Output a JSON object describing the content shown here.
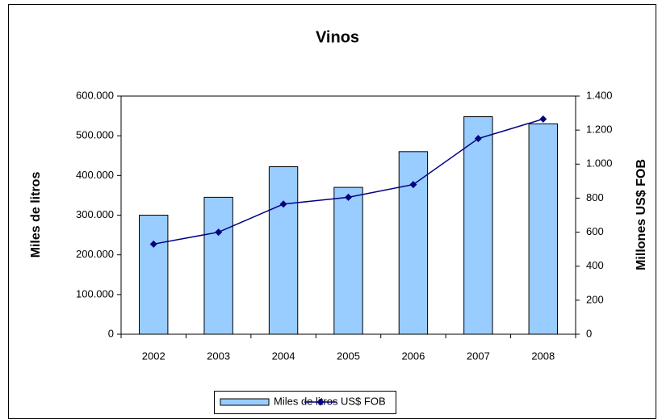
{
  "chart_data": {
    "type": "bar_line",
    "title": "Vinos",
    "categories": [
      "2002",
      "2003",
      "2004",
      "2005",
      "2006",
      "2007",
      "2008"
    ],
    "series": [
      {
        "name": "Miles de litros",
        "color": "#99ccff",
        "type": "bar",
        "values": [
          300000,
          345000,
          422000,
          370000,
          460000,
          548000,
          530000
        ]
      },
      {
        "name": "US$ FOB",
        "color": "#000080",
        "type": "line",
        "axis": "y2",
        "values": [
          530,
          600,
          765,
          805,
          880,
          1150,
          1265
        ]
      }
    ],
    "y_label": "Miles de litros",
    "y2_label": "Millones US$ FOB",
    "ylim": [
      0,
      600000
    ],
    "yticks": [
      0,
      {
        "value": 100000,
        "label": "100.000"
      },
      {
        "value": 200000,
        "label": "200.000"
      },
      {
        "value": 300000,
        "label": "300.000"
      },
      {
        "value": 400000,
        "label": "400.000"
      },
      {
        "value": 500000,
        "label": "500.000"
      },
      {
        "value": 600000,
        "label": "600.000"
      }
    ],
    "y2lim": [
      0,
      1400
    ],
    "y2ticks": [
      0,
      200,
      400,
      600,
      800,
      {
        "value": 1000,
        "label": "1.000"
      },
      {
        "value": 1200,
        "label": "1.200"
      },
      {
        "value": 1400,
        "label": "1.400"
      }
    ],
    "legend": "bottom"
  }
}
